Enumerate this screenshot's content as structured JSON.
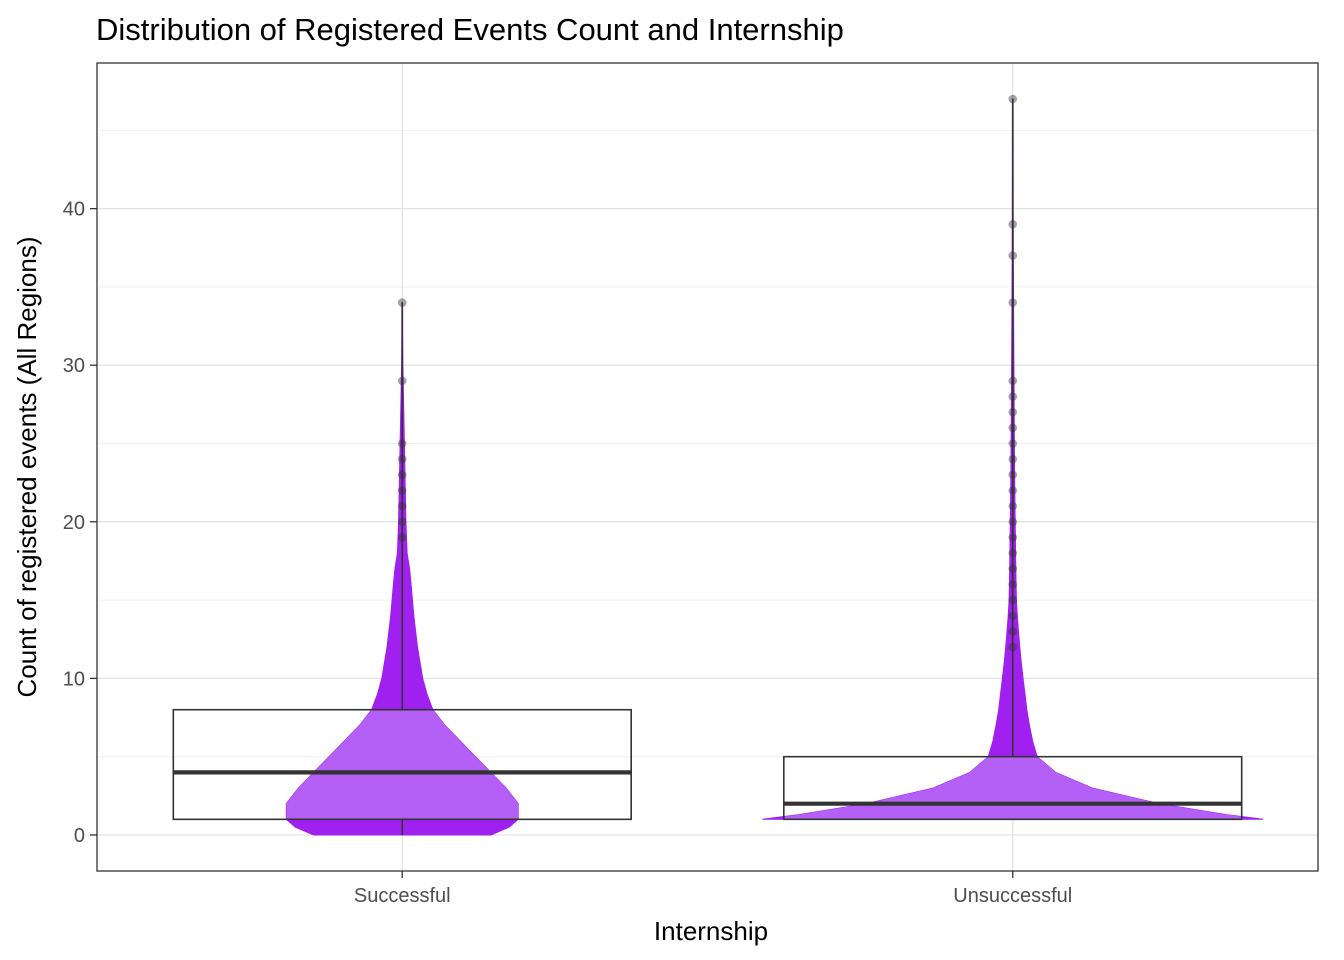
{
  "chart_data": {
    "type": "violin",
    "title": "Distribution of Registered Events Count and Internship",
    "xlabel": "Internship",
    "ylabel": "Count of registered events (All Regions)",
    "categories": [
      "Successful",
      "Unsuccessful"
    ],
    "y_ticks": [
      0,
      10,
      20,
      30,
      40
    ],
    "ylim": [
      -2.3,
      49.3
    ],
    "grid": true,
    "colors": {
      "violin_fill": "#a020f0",
      "box_overlay_fill": "#b45ff5",
      "box_line": "#333333",
      "outlier": "#333333"
    },
    "series": [
      {
        "name": "Successful",
        "box": {
          "q1": 1,
          "median": 4,
          "q3": 8,
          "whisker_low": 0,
          "whisker_high": 34
        },
        "violin": [
          [
            0,
            0.29
          ],
          [
            0.5,
            0.35
          ],
          [
            1,
            0.38
          ],
          [
            2,
            0.38
          ],
          [
            3,
            0.34
          ],
          [
            4,
            0.29
          ],
          [
            5,
            0.24
          ],
          [
            6,
            0.19
          ],
          [
            7,
            0.14
          ],
          [
            8,
            0.1
          ],
          [
            9,
            0.081
          ],
          [
            10,
            0.067
          ],
          [
            12,
            0.05
          ],
          [
            14,
            0.038
          ],
          [
            16,
            0.029
          ],
          [
            17,
            0.024
          ],
          [
            18,
            0.016
          ],
          [
            20,
            0.012
          ],
          [
            22,
            0.01
          ],
          [
            24,
            0.008
          ],
          [
            26,
            0.006
          ],
          [
            28,
            0.004
          ],
          [
            30,
            0.002
          ],
          [
            32,
            0.0015
          ],
          [
            34,
            0.001
          ]
        ],
        "outliers": [
          34,
          29,
          25,
          24,
          23,
          22,
          21,
          20,
          19
        ]
      },
      {
        "name": "Unsuccessful",
        "box": {
          "q1": 1,
          "median": 2,
          "q3": 5,
          "whisker_low": 1,
          "whisker_high": 47
        },
        "violin": [
          [
            1,
            0.82
          ],
          [
            1.3,
            0.7
          ],
          [
            2,
            0.48
          ],
          [
            3,
            0.26
          ],
          [
            4,
            0.14
          ],
          [
            5,
            0.08
          ],
          [
            6,
            0.065
          ],
          [
            7,
            0.055
          ],
          [
            8,
            0.046
          ],
          [
            9,
            0.04
          ],
          [
            10,
            0.034
          ],
          [
            11,
            0.028
          ],
          [
            12,
            0.023
          ],
          [
            13,
            0.019
          ],
          [
            14,
            0.015
          ],
          [
            15,
            0.012
          ],
          [
            17,
            0.01
          ],
          [
            20,
            0.008
          ],
          [
            23,
            0.006
          ],
          [
            26,
            0.005
          ],
          [
            29,
            0.004
          ],
          [
            32,
            0.003
          ],
          [
            36,
            0.002
          ],
          [
            40,
            0.0015
          ],
          [
            47,
            0.001
          ]
        ],
        "outliers": [
          47,
          39,
          37,
          34,
          29,
          28,
          27,
          26,
          25,
          24,
          23,
          22,
          21,
          20,
          19,
          18,
          17,
          16,
          15,
          14,
          13,
          12
        ]
      }
    ]
  }
}
